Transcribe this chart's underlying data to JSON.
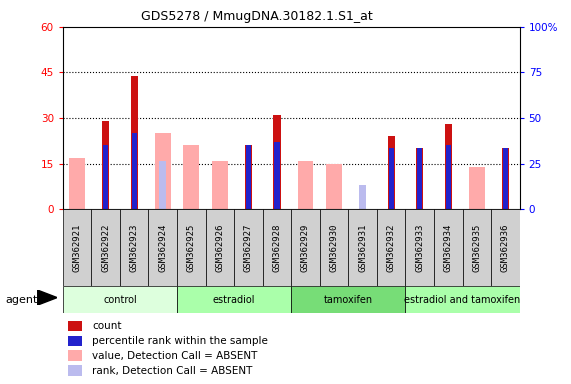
{
  "title": "GDS5278 / MmugDNA.30182.1.S1_at",
  "samples": [
    "GSM362921",
    "GSM362922",
    "GSM362923",
    "GSM362924",
    "GSM362925",
    "GSM362926",
    "GSM362927",
    "GSM362928",
    "GSM362929",
    "GSM362930",
    "GSM362931",
    "GSM362932",
    "GSM362933",
    "GSM362934",
    "GSM362935",
    "GSM362936"
  ],
  "red_bars": [
    0,
    29,
    44,
    0,
    0,
    0,
    21,
    31,
    0,
    0,
    0,
    24,
    20,
    28,
    0,
    20
  ],
  "blue_bars": [
    0,
    21,
    25,
    0,
    0,
    0,
    21,
    22,
    0,
    0,
    0,
    20,
    20,
    21,
    0,
    20
  ],
  "pink_bars": [
    17,
    0,
    0,
    25,
    21,
    16,
    0,
    0,
    16,
    15,
    0,
    0,
    0,
    0,
    14,
    0
  ],
  "lightblue_bars": [
    0,
    0,
    0,
    16,
    0,
    0,
    0,
    16,
    0,
    0,
    8,
    0,
    0,
    0,
    0,
    16
  ],
  "red_color": "#cc1111",
  "blue_color": "#2222cc",
  "pink_color": "#ffaaaa",
  "lightblue_color": "#bbbbee",
  "ylim_left": [
    0,
    60
  ],
  "ylim_right": [
    0,
    100
  ],
  "yticks_left": [
    0,
    15,
    30,
    45,
    60
  ],
  "ytick_labels_left": [
    "0",
    "15",
    "30",
    "45",
    "60"
  ],
  "ytick_labels_right": [
    "0",
    "25",
    "50",
    "75",
    "100%"
  ],
  "groups": [
    {
      "label": "control",
      "start": 0,
      "end": 3,
      "color": "#ddffdd"
    },
    {
      "label": "estradiol",
      "start": 4,
      "end": 7,
      "color": "#aaffaa"
    },
    {
      "label": "tamoxifen",
      "start": 8,
      "end": 11,
      "color": "#77dd77"
    },
    {
      "label": "estradiol and tamoxifen",
      "start": 12,
      "end": 15,
      "color": "#aaffaa"
    }
  ],
  "legend_labels": [
    "count",
    "percentile rank within the sample",
    "value, Detection Call = ABSENT",
    "rank, Detection Call = ABSENT"
  ],
  "legend_colors": [
    "#cc1111",
    "#2222cc",
    "#ffaaaa",
    "#bbbbee"
  ],
  "dotted_lines": [
    15,
    30,
    45
  ],
  "plot_bg": "#ffffff",
  "tick_bg": "#d0d0d0"
}
